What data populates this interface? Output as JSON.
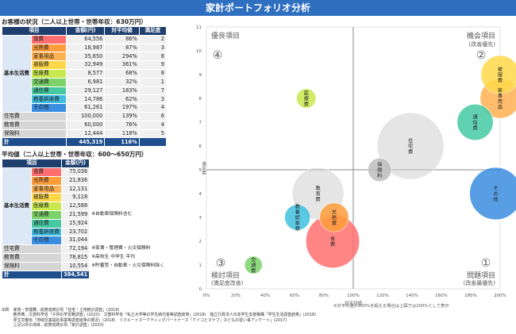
{
  "title": "家計ポートフォリオ分析",
  "customer": {
    "heading": "お客様の状況（二人以上世帯・世帯年収：630万円）",
    "headers": [
      "項目",
      "金額(円)",
      "対平均値",
      "満足度"
    ],
    "category_label": "基本生活費",
    "rows": [
      {
        "name": "食費",
        "amount": "64,556",
        "ratio": "86%",
        "sat": "2",
        "color": "#ff6f6f",
        "group": "basic"
      },
      {
        "name": "光熱費",
        "amount": "18,987",
        "ratio": "87%",
        "sat": "3",
        "color": "#ff9c3a",
        "group": "basic"
      },
      {
        "name": "家事用品",
        "amount": "35,650",
        "ratio": "294%",
        "sat": "8",
        "color": "#ffb050",
        "group": "basic"
      },
      {
        "name": "被服費",
        "amount": "32,949",
        "ratio": "361%",
        "sat": "9",
        "color": "#ffd84a",
        "group": "basic"
      },
      {
        "name": "医療費",
        "amount": "8,577",
        "ratio": "68%",
        "sat": "8",
        "color": "#c9e84e",
        "group": "basic"
      },
      {
        "name": "交通費",
        "amount": "6,981",
        "ratio": "32%",
        "sat": "1",
        "color": "#7bd36a",
        "group": "basic"
      },
      {
        "name": "通信費",
        "amount": "29,127",
        "ratio": "183%",
        "sat": "7",
        "color": "#44c9a3",
        "group": "basic"
      },
      {
        "name": "教養娯楽費",
        "amount": "14,786",
        "ratio": "62%",
        "sat": "3",
        "color": "#3fbfe0",
        "group": "basic"
      },
      {
        "name": "その他",
        "amount": "61,261",
        "ratio": "197%",
        "sat": "4",
        "color": "#3a8de0",
        "group": "basic"
      },
      {
        "name": "住宅費",
        "amount": "100,000",
        "ratio": "139%",
        "sat": "6",
        "color": "",
        "group": "other"
      },
      {
        "name": "教育費",
        "amount": "60,000",
        "ratio": "76%",
        "sat": "4",
        "color": "",
        "group": "other"
      },
      {
        "name": "保険料",
        "amount": "12,444",
        "ratio": "118%",
        "sat": "5",
        "color": "",
        "group": "other"
      }
    ],
    "total_label": "計",
    "total_amount": "445,319",
    "total_ratio": "116%"
  },
  "average": {
    "heading": "平均値（二人以上世帯・世帯年収：600～650万円）",
    "headers": [
      "項目",
      "金額(円)"
    ],
    "category_label": "基本生活費",
    "rows": [
      {
        "name": "食費",
        "amount": "75,036",
        "note": "",
        "color": "#ff6f6f",
        "group": "basic"
      },
      {
        "name": "光熱費",
        "amount": "21,836",
        "note": "",
        "color": "#ff9c3a",
        "group": "basic"
      },
      {
        "name": "家事用品",
        "amount": "12,131",
        "note": "",
        "color": "#ffb050",
        "group": "basic"
      },
      {
        "name": "被服費",
        "amount": "9,118",
        "note": "",
        "color": "#ffd84a",
        "group": "basic"
      },
      {
        "name": "医療費",
        "amount": "12,588",
        "note": "",
        "color": "#c9e84e",
        "group": "basic"
      },
      {
        "name": "交通費",
        "amount": "21,599",
        "note": "※自動車保険料含む",
        "color": "#7bd36a",
        "group": "basic"
      },
      {
        "name": "通信費",
        "amount": "15,924",
        "note": "",
        "color": "#44c9a3",
        "group": "basic"
      },
      {
        "name": "教養娯楽費",
        "amount": "23,702",
        "note": "",
        "color": "#3fbfe0",
        "group": "basic"
      },
      {
        "name": "その他",
        "amount": "31,044",
        "note": "",
        "color": "#3a8de0",
        "group": "basic"
      },
      {
        "name": "住宅費",
        "amount": "72,194",
        "note": "※家賃・管理費・火災保険料",
        "color": "",
        "group": "other"
      },
      {
        "name": "教育費",
        "amount": "78,815",
        "note": "※高校生 中学生 平均",
        "color": "",
        "group": "other"
      },
      {
        "name": "保険料",
        "amount": "10,554",
        "note": "※貯蓄型・自動車・火災保険料除く",
        "color": "",
        "group": "other"
      }
    ],
    "total_label": "計",
    "total_amount": "384,541"
  },
  "sources": [
    "出所　家賃・管理費…総務省統計局「住宅・土地統計調査」(2018)",
    "　　　教育費…文部科学省「子供の学習費調査」(2020)　文部科学省「私立大学等の学生納付金等調査結果」(2018)　独立行政法人日本学生支援機構「学生生活調査結果」(2018)",
    "　　　厚生労働省「地域児童福祉事業等調査結果の概況」(2018)　リクルートマーケティングパートナーズ「ケイコとマナブ」子どもの習い事アンケート」(2017)",
    "　　　上記以外の項目…総務省統計局「家計調査」(2020)"
  ],
  "chart_note": "※対平均値が200%を超える場合は上図では200%として表示",
  "chart_data": {
    "type": "scatter",
    "xlabel": "対平均値",
    "ylabel": "満足度",
    "xlim": [
      0,
      200
    ],
    "ylim": [
      0,
      11
    ],
    "xticks": [
      "0%",
      "20%",
      "40%",
      "60%",
      "80%",
      "100%",
      "120%",
      "140%",
      "160%",
      "180%",
      "200%"
    ],
    "yticks": [
      "0",
      "1",
      "2",
      "3",
      "4",
      "5",
      "6",
      "7",
      "8",
      "9",
      "10",
      "11"
    ],
    "reference_x": 100,
    "reference_y": 5,
    "quadrants": [
      {
        "num": "④",
        "label": "優良項目",
        "sub": "",
        "pos": "top-left"
      },
      {
        "num": "②",
        "label": "機会項目",
        "sub": "(改善優先)",
        "pos": "top-right"
      },
      {
        "num": "③",
        "label": "検討項目",
        "sub": "(満足度改善)",
        "pos": "bottom-left"
      },
      {
        "num": "①",
        "label": "問題項目",
        "sub": "(改善最優先)",
        "pos": "bottom-right"
      }
    ],
    "points": [
      {
        "label": "食費",
        "x": 86,
        "y": 2,
        "amount": 64556,
        "color": "#ff6f6f"
      },
      {
        "label": "光熱費",
        "x": 87,
        "y": 3,
        "amount": 18987,
        "color": "#ff9c3a"
      },
      {
        "label": "家事用品",
        "x": 200,
        "y": 8,
        "amount": 35650,
        "color": "#ffb050"
      },
      {
        "label": "被服費",
        "x": 200,
        "y": 9,
        "amount": 32949,
        "color": "#ffd84a"
      },
      {
        "label": "医療費",
        "x": 68,
        "y": 8,
        "amount": 8577,
        "color": "#c9e84e"
      },
      {
        "label": "交通費",
        "x": 32,
        "y": 1,
        "amount": 6981,
        "color": "#7bd36a"
      },
      {
        "label": "通信費",
        "x": 183,
        "y": 7,
        "amount": 29127,
        "color": "#44c9a3"
      },
      {
        "label": "教養娯楽費",
        "x": 62,
        "y": 3,
        "amount": 14786,
        "color": "#3fbfe0"
      },
      {
        "label": "その他",
        "x": 197,
        "y": 4,
        "amount": 61261,
        "color": "#3a8de0"
      },
      {
        "label": "住宅費",
        "x": 139,
        "y": 6,
        "amount": 100000,
        "color": "#cfcfcf"
      },
      {
        "label": "教育費",
        "x": 76,
        "y": 4,
        "amount": 60000,
        "color": "#cfcfcf"
      },
      {
        "label": "保険料",
        "x": 118,
        "y": 5,
        "amount": 12444,
        "color": "#bdbdbd"
      }
    ]
  }
}
